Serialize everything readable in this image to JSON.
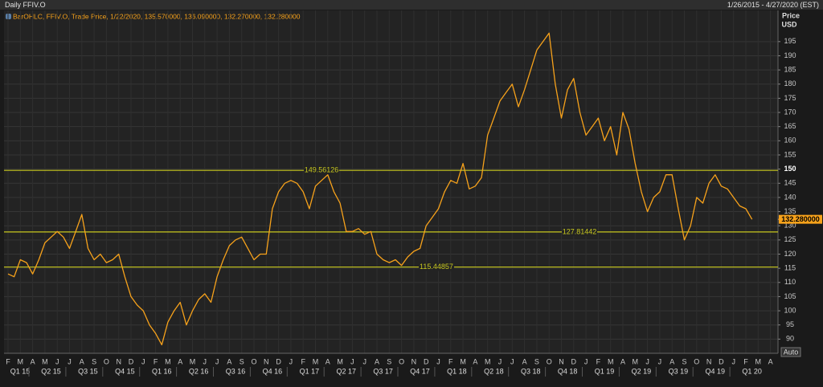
{
  "header": {
    "title": "Daily FFIV.O",
    "range": "1/26/2015 - 4/27/2020 (EST)"
  },
  "chart_data": {
    "type": "line",
    "legend": "BarOHLC, FFIV.O, Trade Price, 1/22/2020, 135.570000, 136.090000, 132.270000, 132.280000",
    "y_label": [
      "Price",
      "USD"
    ],
    "categories": [
      "F",
      null,
      "M",
      null,
      "A",
      null,
      "M",
      null,
      "J",
      null,
      "J",
      null,
      "A",
      null,
      "S",
      null,
      "O",
      null,
      "N",
      null,
      "D",
      null,
      "J",
      null,
      "F",
      null,
      "M",
      null,
      "A",
      null,
      "M",
      null,
      "J",
      null,
      "J",
      null,
      "A",
      null,
      "S",
      null,
      "O",
      null,
      "N",
      null,
      "D",
      null,
      "J",
      null,
      "F",
      null,
      "M",
      null,
      "A",
      null,
      "M",
      null,
      "J",
      null,
      "J",
      null,
      "A",
      null,
      "S",
      null,
      "O",
      null,
      "N",
      null,
      "D",
      null,
      "J",
      null,
      "F",
      null,
      "M",
      null,
      "A",
      null,
      "M",
      null,
      "J",
      null,
      "J",
      null,
      "A",
      null,
      "S",
      null,
      "O",
      null,
      "N",
      null,
      "D",
      null,
      "J",
      null,
      "F",
      null,
      "M",
      null,
      "A",
      null,
      "M",
      null,
      "J",
      null,
      "J",
      null,
      "A",
      null,
      "S",
      null,
      "O",
      null,
      "N",
      null,
      "D",
      null,
      "J",
      null,
      "F",
      null,
      "M",
      null,
      "A",
      null
    ],
    "quarters": [
      "Q1 15",
      "Q2 15",
      "Q3 15",
      "Q4 15",
      "Q1 16",
      "Q2 16",
      "Q3 16",
      "Q4 16",
      "Q1 17",
      "Q2 17",
      "Q3 17",
      "Q4 17",
      "Q1 18",
      "Q2 18",
      "Q3 18",
      "Q4 18",
      "Q1 19",
      "Q2 19",
      "Q3 19",
      "Q4 19",
      "Q1 20"
    ],
    "series": [
      {
        "name": "FFIV.O",
        "color": "#f7a21b",
        "values": [
          113,
          112,
          118,
          117,
          113,
          118,
          124,
          126,
          128,
          126,
          122,
          128,
          134,
          122,
          118,
          120,
          117,
          118,
          120,
          112,
          105,
          102,
          100,
          95,
          92,
          88,
          96,
          100,
          103,
          95,
          100,
          104,
          106,
          103,
          112,
          118,
          123,
          125,
          126,
          122,
          118,
          120,
          120,
          136,
          142,
          145,
          146,
          145,
          142,
          136,
          144,
          146,
          148,
          142,
          138,
          128,
          128,
          129,
          127,
          128,
          120,
          118,
          117,
          118,
          116,
          119,
          121,
          122,
          130,
          133,
          136,
          142,
          146,
          145,
          152,
          143,
          144,
          147,
          162,
          168,
          174,
          177,
          180,
          172,
          178,
          185,
          192,
          195,
          198,
          180,
          168,
          178,
          182,
          170,
          162,
          165,
          168,
          160,
          165,
          155,
          170,
          164,
          152,
          142,
          135,
          140,
          142,
          148,
          148,
          136,
          125,
          130,
          140,
          138,
          145,
          148,
          144,
          143,
          140,
          137,
          136,
          132.28,
          null,
          null,
          null,
          null
        ]
      }
    ],
    "levels": [
      149.56126,
      127.81442,
      115.44857
    ],
    "level_color": "#c8c81e",
    "last_price": {
      "value": 132.28,
      "label": "132.280000"
    },
    "ylim": [
      85,
      206
    ],
    "yticks": [
      90,
      95,
      100,
      105,
      110,
      115,
      120,
      125,
      130,
      135,
      140,
      145,
      150,
      155,
      160,
      165,
      170,
      175,
      180,
      185,
      190,
      195
    ],
    "highlight_tick": 150,
    "grid": true,
    "button": "Auto"
  }
}
